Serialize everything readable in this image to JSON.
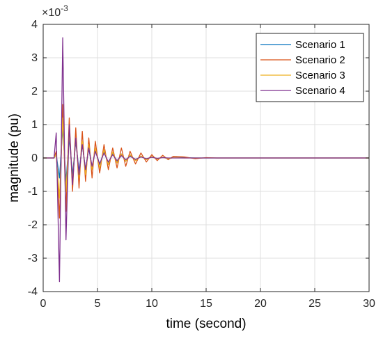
{
  "chart_data": {
    "type": "line",
    "title": "",
    "xlabel": "time (second)",
    "ylabel": "magnitude (pu)",
    "exponent_label": "×10",
    "exponent_power": "-3",
    "xlim": [
      0,
      30
    ],
    "ylim": [
      -4,
      4
    ],
    "xticks": [
      "0",
      "5",
      "10",
      "15",
      "20",
      "25",
      "30"
    ],
    "yticks": [
      "4",
      "3",
      "2",
      "1",
      "0",
      "-1",
      "-2",
      "-3",
      "-4"
    ],
    "grid": true,
    "legend_position": "top-right",
    "x": [
      0,
      1.0,
      1.2,
      1.5,
      1.8,
      2.1,
      2.4,
      2.7,
      3.0,
      3.3,
      3.6,
      3.9,
      4.2,
      4.5,
      4.8,
      5.2,
      5.6,
      6.0,
      6.4,
      6.8,
      7.2,
      7.6,
      8.0,
      8.5,
      9.0,
      9.5,
      10.0,
      10.5,
      11.0,
      11.5,
      12.0,
      13.0,
      14.0,
      15.0,
      16.0,
      18.0,
      20.0,
      25.0,
      30.0
    ],
    "series": [
      {
        "name": "Scenario 1",
        "color": "#0072BD",
        "values": [
          0,
          0,
          0.1,
          -0.6,
          0.9,
          -0.7,
          0.6,
          -0.5,
          0.5,
          -0.4,
          0.4,
          -0.35,
          0.3,
          -0.3,
          0.25,
          -0.2,
          0.2,
          -0.18,
          0.15,
          -0.12,
          0.12,
          -0.1,
          0.08,
          -0.06,
          0.05,
          -0.04,
          0.04,
          -0.03,
          0.02,
          -0.02,
          0.01,
          0.01,
          0,
          0,
          0,
          0,
          0,
          0,
          0
        ]
      },
      {
        "name": "Scenario 2",
        "color": "#D95319",
        "values": [
          0,
          0,
          0.2,
          -1.8,
          1.6,
          -1.6,
          1.2,
          -1.0,
          0.9,
          -0.9,
          0.8,
          -0.7,
          0.6,
          -0.6,
          0.5,
          -0.45,
          0.4,
          -0.35,
          0.3,
          -0.3,
          0.3,
          -0.25,
          0.2,
          -0.18,
          0.15,
          -0.12,
          0.1,
          -0.08,
          0.08,
          -0.05,
          0.05,
          0.03,
          -0.02,
          0.01,
          0,
          0,
          0,
          0,
          0
        ]
      },
      {
        "name": "Scenario 3",
        "color": "#EDB120",
        "values": [
          0,
          0,
          0.1,
          -1.2,
          1.2,
          -1.0,
          0.8,
          -0.7,
          0.6,
          -0.6,
          0.5,
          -0.5,
          0.4,
          -0.35,
          0.3,
          -0.3,
          0.25,
          -0.2,
          0.18,
          -0.15,
          0.12,
          -0.1,
          0.1,
          -0.08,
          0.06,
          -0.05,
          0.04,
          -0.03,
          0.02,
          -0.02,
          0.01,
          0,
          0,
          0,
          0,
          0,
          0,
          0,
          0
        ]
      },
      {
        "name": "Scenario 4",
        "color": "#7E2F8E",
        "values": [
          0,
          0,
          0.75,
          -3.7,
          3.6,
          -2.45,
          1.0,
          -0.8,
          0.6,
          -0.5,
          0.4,
          -0.35,
          0.3,
          -0.25,
          0.2,
          -0.18,
          0.15,
          -0.12,
          0.1,
          -0.08,
          0.07,
          -0.05,
          0.05,
          -0.04,
          0.03,
          -0.02,
          0.02,
          -0.01,
          0.01,
          0,
          0,
          0,
          0,
          0,
          0,
          0,
          0,
          0,
          0
        ]
      }
    ]
  }
}
